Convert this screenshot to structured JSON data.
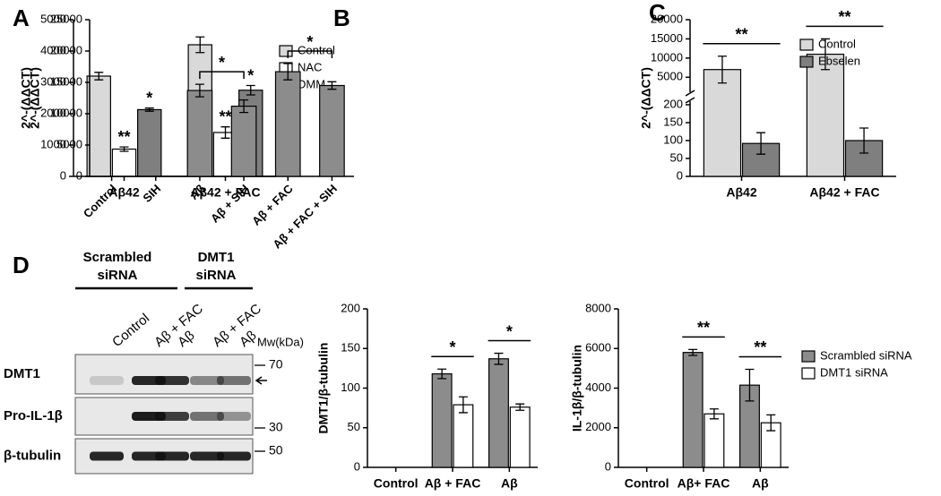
{
  "chart_data": [
    {
      "type": "bar",
      "panel": "A",
      "ylabel": "2^-(ΔΔCT)",
      "categories": [
        "Aβ42",
        "Aβ42 + FAC"
      ],
      "series": [
        {
          "name": "Control",
          "color": "#d9d9d9",
          "values": [
            3200,
            4200
          ],
          "errors": [
            120,
            250
          ]
        },
        {
          "name": "NAC",
          "color": "#ffffff",
          "values": [
            870,
            1400
          ],
          "errors": [
            70,
            180
          ]
        },
        {
          "name": "DMM",
          "color": "#7f7f7f",
          "values": [
            2130,
            2750
          ],
          "errors": [
            50,
            150
          ]
        }
      ],
      "ylim": [
        0,
        5000
      ],
      "yticks": [
        0,
        1000,
        2000,
        3000,
        4000,
        5000
      ],
      "legend": "right",
      "annotations": [
        {
          "text": "**",
          "category": 0,
          "series": 1
        },
        {
          "text": "*",
          "category": 0,
          "series": 2
        },
        {
          "text": "**",
          "category": 1,
          "series": 1
        },
        {
          "text": "*",
          "category": 1,
          "series": 2
        }
      ]
    },
    {
      "type": "bar",
      "panel": "B",
      "ylabel": "2^-(ΔΔCT)",
      "categories": [
        "Control",
        "SIH",
        "Aβ",
        "Aβ + SIH",
        "Aβ + FAC",
        "Aβ + FAC + SIH"
      ],
      "series": [
        {
          "color": "#8c8c8c",
          "values": [
            0,
            0,
            13700,
            11200,
            16700,
            14500
          ],
          "errors": [
            0,
            0,
            1000,
            1000,
            1300,
            600
          ]
        }
      ],
      "ylim": [
        0,
        25000
      ],
      "yticks": [
        0,
        5000,
        10000,
        15000,
        20000,
        25000
      ],
      "xlabel_rotation": -45,
      "annotations": [
        {
          "text": "*",
          "from": 2,
          "to": 3
        },
        {
          "text": "*",
          "from": 4,
          "to": 5
        }
      ]
    },
    {
      "type": "bar",
      "panel": "C",
      "ylabel": "2^-(ΔΔCT)",
      "categories": [
        "Aβ42",
        "Aβ42 + FAC"
      ],
      "series": [
        {
          "name": "Control",
          "color": "#d9d9d9",
          "values": [
            7000,
            11000
          ],
          "errors": [
            3500,
            4000
          ]
        },
        {
          "name": "Ebselen",
          "color": "#7f7f7f",
          "values": [
            92,
            100
          ],
          "errors": [
            30,
            35
          ]
        }
      ],
      "ylim": [
        0,
        20000
      ],
      "ybreak": [
        200,
        2500
      ],
      "yticks": [
        0,
        50,
        100,
        150,
        200,
        5000,
        10000,
        15000,
        20000
      ],
      "legend": "right",
      "annotations": [
        {
          "text": "**",
          "category": 0
        },
        {
          "text": "**",
          "category": 1
        }
      ]
    },
    {
      "type": "bar",
      "ylabel": "DMT1/β-tubulin",
      "categories": [
        "Control",
        "Aβ + FAC",
        "Aβ"
      ],
      "series": [
        {
          "color": "#8c8c8c",
          "values": [
            0,
            118,
            137
          ],
          "errors": [
            0,
            6,
            7
          ]
        },
        {
          "color": "#ffffff",
          "values": [
            null,
            79,
            76
          ],
          "errors": [
            null,
            10,
            4
          ]
        }
      ],
      "ylim": [
        0,
        200
      ],
      "yticks": [
        0,
        50,
        100,
        150,
        200
      ],
      "annotations": [
        {
          "text": "*",
          "category": 1
        },
        {
          "text": "*",
          "category": 2
        }
      ]
    },
    {
      "type": "bar",
      "ylabel": "IL-1β/β-tubulin",
      "categories": [
        "Control",
        "Aβ+ FAC",
        "Aβ"
      ],
      "series": [
        {
          "name": "Scrambled siRNA",
          "color": "#8c8c8c",
          "values": [
            0,
            5800,
            4150
          ],
          "errors": [
            0,
            150,
            800
          ]
        },
        {
          "name": "DMT1 siRNA",
          "color": "#ffffff",
          "values": [
            null,
            2700,
            2250
          ],
          "errors": [
            null,
            250,
            400
          ]
        }
      ],
      "ylim": [
        0,
        8000
      ],
      "yticks": [
        0,
        2000,
        4000,
        6000,
        8000
      ],
      "legend": "right",
      "annotations": [
        {
          "text": "**",
          "category": 1
        },
        {
          "text": "**",
          "category": 2
        }
      ]
    }
  ],
  "blot": {
    "panel": "D",
    "groups": [
      {
        "label": "Scrambled siRNA"
      },
      {
        "label": "DMT1 siRNA"
      }
    ],
    "lanes": [
      "Control",
      "Aβ + FAC",
      "Aβ",
      "Aβ + FAC",
      "Aβ"
    ],
    "mw_label": "Mw(kDa)",
    "rows": [
      {
        "label": "DMT1",
        "marker": "70"
      },
      {
        "label": "Pro-IL-1β",
        "marker": "30"
      },
      {
        "label": "β-tubulin",
        "marker": "50"
      }
    ]
  }
}
